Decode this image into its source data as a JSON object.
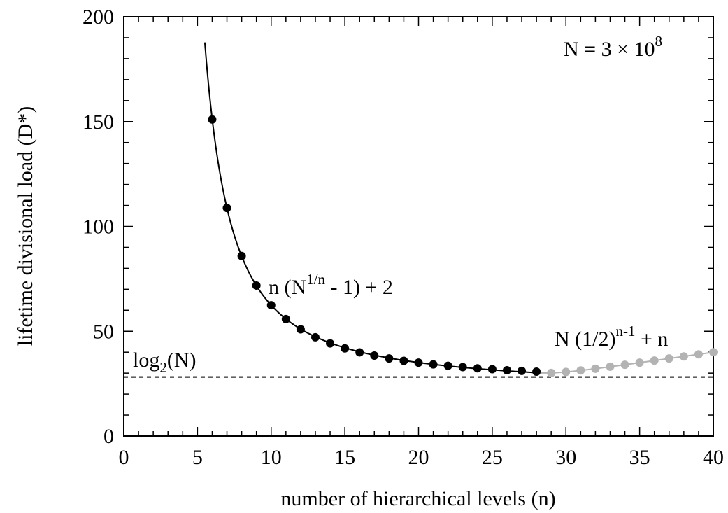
{
  "chart_data": {
    "type": "line",
    "title": "",
    "xlabel": "number of hierarchical levels (n)",
    "ylabel": "lifetime divisional load (D*)",
    "xlim": [
      0,
      40
    ],
    "ylim": [
      0,
      200
    ],
    "xticks": [
      0,
      5,
      10,
      15,
      20,
      25,
      30,
      35,
      40
    ],
    "yticks": [
      0,
      50,
      100,
      150,
      200
    ],
    "grid": false,
    "legend": "none",
    "N": 300000000,
    "series": [
      {
        "formula": "n (N^{1/n} - 1) + 2",
        "color": "#000000",
        "x": [
          6,
          7,
          8,
          9,
          10,
          11,
          12,
          13,
          14,
          15,
          16,
          17,
          18,
          19,
          20,
          21,
          22,
          23,
          24,
          25,
          26,
          27,
          28
        ],
        "y": [
          151.0,
          108.8,
          85.9,
          71.8,
          62.4,
          55.8,
          50.9,
          47.1,
          44.2,
          41.8,
          39.9,
          38.4,
          37.0,
          35.9,
          35.0,
          34.2,
          33.5,
          32.9,
          32.3,
          31.9,
          31.4,
          31.1,
          30.7
        ]
      },
      {
        "formula": "N (1/2)^{n-1} + n",
        "color": "#b3b3b3",
        "x": [
          29,
          30,
          31,
          32,
          33,
          34,
          35,
          36,
          37,
          38,
          39,
          40
        ],
        "y": [
          30.1,
          30.6,
          31.3,
          32.1,
          33.1,
          34.0,
          35.0,
          36.0,
          37.0,
          38.0,
          39.0,
          40.0
        ]
      }
    ],
    "reference_line": {
      "y": 28.16,
      "style": "dashed"
    },
    "annotations": {
      "n_label": "N = 3 × 10",
      "n_exp": "8",
      "formula1_a": "n (N",
      "formula1_sup": "1/n",
      "formula1_b": " - 1) + 2",
      "formula2_a": "N (1/2)",
      "formula2_sup": "n-1",
      "formula2_b": " + n",
      "log_a": "log",
      "log_sub": "2",
      "log_b": "(N)"
    }
  }
}
